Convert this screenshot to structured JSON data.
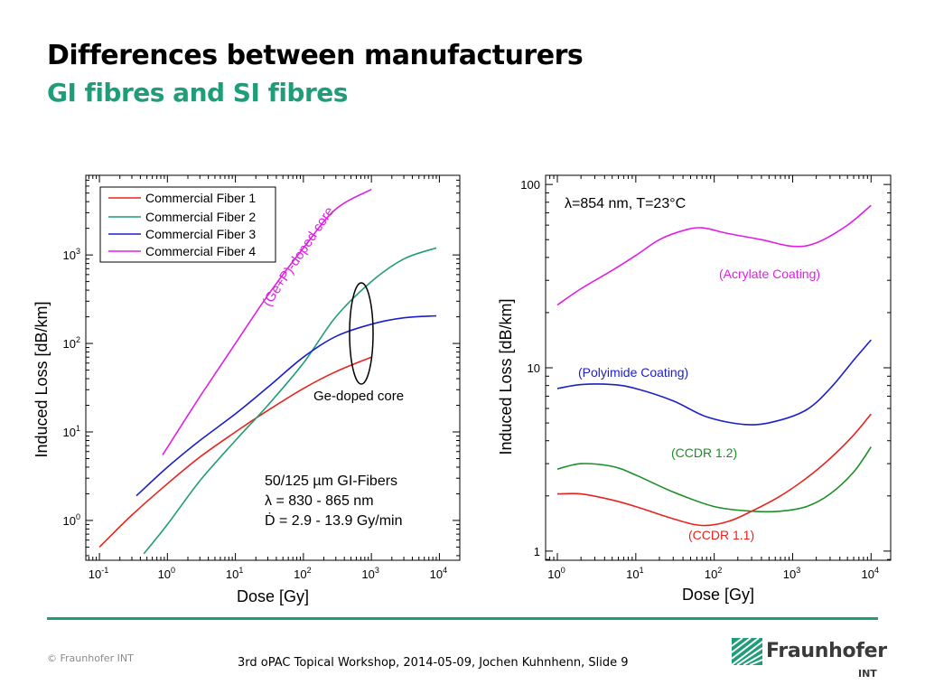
{
  "slide": {
    "title": "Differences between manufacturers",
    "subtitle": "GI fibres and SI fibres",
    "copyright": "© Fraunhofer INT",
    "footer": "3rd oPAC Topical Workshop, 2014-05-09, Jochen Kuhnhenn, Slide 9",
    "logo_name": "Fraunhofer",
    "logo_sub": "INT",
    "colors": {
      "accent": "#1f9c78"
    }
  },
  "chart_data": [
    {
      "type": "line",
      "xlabel": "Dose [Gy]",
      "ylabel": "Induced Loss [dB/km]",
      "xscale": "log",
      "yscale": "log",
      "xlim": [
        0.0631,
        19953
      ],
      "ylim": [
        0.3548,
        7943
      ],
      "x_ticks": [
        {
          "value": 0.1,
          "base": "10",
          "exp": "-1"
        },
        {
          "value": 1,
          "base": "10",
          "exp": "0"
        },
        {
          "value": 10,
          "base": "10",
          "exp": "1"
        },
        {
          "value": 100,
          "base": "10",
          "exp": "2"
        },
        {
          "value": 1000,
          "base": "10",
          "exp": "3"
        },
        {
          "value": 10000,
          "base": "10",
          "exp": "4"
        }
      ],
      "y_ticks": [
        {
          "value": 1,
          "base": "10",
          "exp": "0"
        },
        {
          "value": 10,
          "base": "10",
          "exp": "1"
        },
        {
          "value": 100,
          "base": "10",
          "exp": "2"
        },
        {
          "value": 1000,
          "base": "10",
          "exp": "3"
        }
      ],
      "legend_position": "top-left",
      "series": [
        {
          "name": "Commercial Fiber 1",
          "color": "#e8231d",
          "x": [
            0.1,
            0.3,
            1,
            3,
            10,
            30,
            100,
            300,
            1000
          ],
          "y": [
            0.5,
            1.15,
            2.6,
            5.2,
            10,
            17.5,
            31,
            48,
            70
          ]
        },
        {
          "name": "Commercial Fiber 2",
          "color": "#219c78",
          "x": [
            0.45,
            1,
            3,
            10,
            30,
            100,
            300,
            1000,
            3000,
            9000
          ],
          "y": [
            0.42,
            0.9,
            2.8,
            8,
            20,
            60,
            200,
            500,
            900,
            1200
          ]
        },
        {
          "name": "Commercial Fiber 3",
          "color": "#1c1fc8",
          "x": [
            0.35,
            1,
            3,
            10,
            30,
            100,
            300,
            1000,
            3000,
            9000
          ],
          "y": [
            1.9,
            4,
            8,
            16,
            32,
            70,
            120,
            165,
            195,
            205
          ]
        },
        {
          "name": "Commercial Fiber 4",
          "color": "#e01ee6",
          "x": [
            0.85,
            3,
            10,
            30,
            100,
            300,
            1000
          ],
          "y": [
            5.5,
            25,
            100,
            350,
            1200,
            3300,
            5500
          ]
        }
      ],
      "annotations": [
        {
          "text": "(Ge+P)-doped core",
          "color": "#e01ee6"
        },
        {
          "text": "Ge-doped core",
          "color": "#000000"
        },
        {
          "text": "50/125 µm GI-Fibers",
          "color": "#000000"
        },
        {
          "text": "λ = 830 - 865 nm",
          "color": "#000000"
        },
        {
          "text": "Ḋ = 2.9 - 13.9 Gy/min",
          "color": "#000000"
        }
      ]
    },
    {
      "type": "line",
      "xlabel": "Dose [Gy]",
      "ylabel": "Induced Loss [dB/km]",
      "xscale": "log",
      "yscale": "log",
      "xlim": [
        0.7079,
        17783
      ],
      "ylim": [
        0.8913,
        112.2
      ],
      "x_ticks": [
        {
          "value": 1,
          "base": "10",
          "exp": "0"
        },
        {
          "value": 10,
          "base": "10",
          "exp": "1"
        },
        {
          "value": 100,
          "base": "10",
          "exp": "2"
        },
        {
          "value": 1000,
          "base": "10",
          "exp": "3"
        },
        {
          "value": 10000,
          "base": "10",
          "exp": "4"
        }
      ],
      "y_ticks": [
        {
          "value": 1,
          "label": "1"
        },
        {
          "value": 10,
          "label": "10"
        },
        {
          "value": 100,
          "label": "100"
        }
      ],
      "series": [
        {
          "name": "(Acrylate Coating)",
          "color": "#e01ee6",
          "x": [
            1,
            2,
            5,
            10,
            20,
            40,
            70,
            150,
            400,
            1000,
            2000,
            5000,
            10000
          ],
          "y": [
            22,
            27,
            34,
            41,
            50,
            56,
            58,
            54,
            50,
            46,
            48,
            60,
            77
          ]
        },
        {
          "name": "(Polyimide Coating)",
          "color": "#1c1fc8",
          "x": [
            1,
            2,
            5,
            10,
            30,
            80,
            250,
            600,
            1500,
            3000,
            6000,
            10000
          ],
          "y": [
            7.7,
            8.1,
            8.1,
            7.7,
            6.6,
            5.4,
            4.9,
            5.1,
            5.9,
            7.7,
            11,
            14.2
          ]
        },
        {
          "name": "(CCDR 1.2)",
          "color": "#1a8f25",
          "x": [
            1,
            2,
            5,
            10,
            30,
            100,
            300,
            700,
            1500,
            3000,
            6000,
            10000
          ],
          "y": [
            2.8,
            3.0,
            2.9,
            2.6,
            2.1,
            1.75,
            1.65,
            1.65,
            1.75,
            2.05,
            2.7,
            3.7
          ]
        },
        {
          "name": "(CCDR 1.1)",
          "color": "#e8231d",
          "x": [
            1,
            2,
            5,
            10,
            30,
            70,
            150,
            300,
            700,
            1500,
            3000,
            6000,
            10000
          ],
          "y": [
            2.05,
            2.05,
            1.9,
            1.75,
            1.5,
            1.38,
            1.45,
            1.65,
            2.0,
            2.5,
            3.2,
            4.3,
            5.6
          ]
        }
      ],
      "annotations": [
        {
          "text": "λ=854 nm, T=23°C",
          "color": "#000000"
        }
      ]
    }
  ]
}
